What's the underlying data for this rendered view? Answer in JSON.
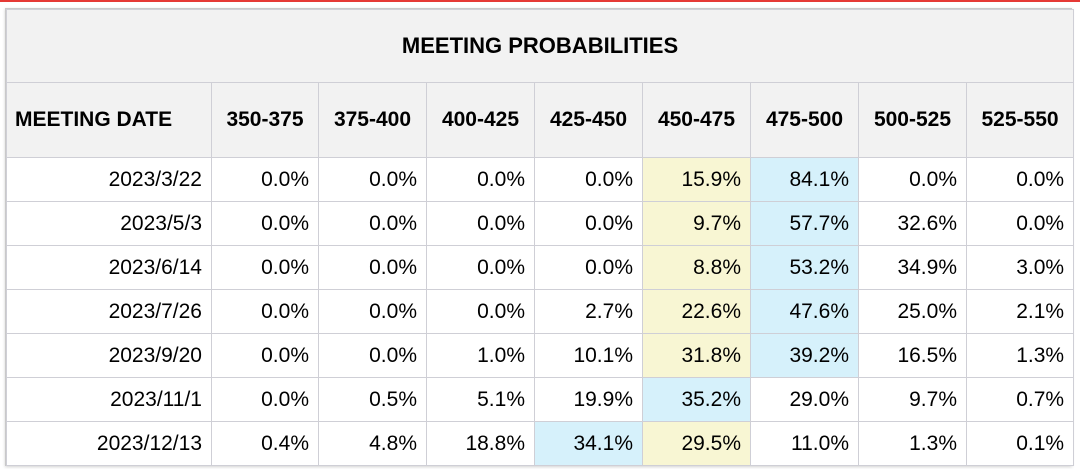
{
  "chart_data": {
    "type": "table",
    "title": "MEETING PROBABILITIES",
    "columns": [
      "MEETING DATE",
      "350-375",
      "375-400",
      "400-425",
      "425-450",
      "450-475",
      "475-500",
      "500-525",
      "525-550"
    ],
    "rows": [
      {
        "date": "2023/3/22",
        "values": [
          "0.0%",
          "0.0%",
          "0.0%",
          "0.0%",
          "15.9%",
          "84.1%",
          "0.0%",
          "0.0%"
        ],
        "highlights": {
          "4": "yellow",
          "5": "blue"
        }
      },
      {
        "date": "2023/5/3",
        "values": [
          "0.0%",
          "0.0%",
          "0.0%",
          "0.0%",
          "9.7%",
          "57.7%",
          "32.6%",
          "0.0%"
        ],
        "highlights": {
          "4": "yellow",
          "5": "blue"
        }
      },
      {
        "date": "2023/6/14",
        "values": [
          "0.0%",
          "0.0%",
          "0.0%",
          "0.0%",
          "8.8%",
          "53.2%",
          "34.9%",
          "3.0%"
        ],
        "highlights": {
          "4": "yellow",
          "5": "blue"
        }
      },
      {
        "date": "2023/7/26",
        "values": [
          "0.0%",
          "0.0%",
          "0.0%",
          "2.7%",
          "22.6%",
          "47.6%",
          "25.0%",
          "2.1%"
        ],
        "highlights": {
          "4": "yellow",
          "5": "blue"
        }
      },
      {
        "date": "2023/9/20",
        "values": [
          "0.0%",
          "0.0%",
          "1.0%",
          "10.1%",
          "31.8%",
          "39.2%",
          "16.5%",
          "1.3%"
        ],
        "highlights": {
          "4": "yellow",
          "5": "blue"
        }
      },
      {
        "date": "2023/11/1",
        "values": [
          "0.0%",
          "0.5%",
          "5.1%",
          "19.9%",
          "35.2%",
          "29.0%",
          "9.7%",
          "0.7%"
        ],
        "highlights": {
          "4": "blue"
        }
      },
      {
        "date": "2023/12/13",
        "values": [
          "0.4%",
          "4.8%",
          "18.8%",
          "34.1%",
          "29.5%",
          "11.0%",
          "1.3%",
          "0.1%"
        ],
        "highlights": {
          "3": "blue",
          "4": "yellow"
        }
      }
    ]
  },
  "colors": {
    "header_bg": "#f2f2f2",
    "highlight_yellow": "#f8f6d3",
    "highlight_blue": "#d6f1fb",
    "top_accent": "#e53935"
  }
}
